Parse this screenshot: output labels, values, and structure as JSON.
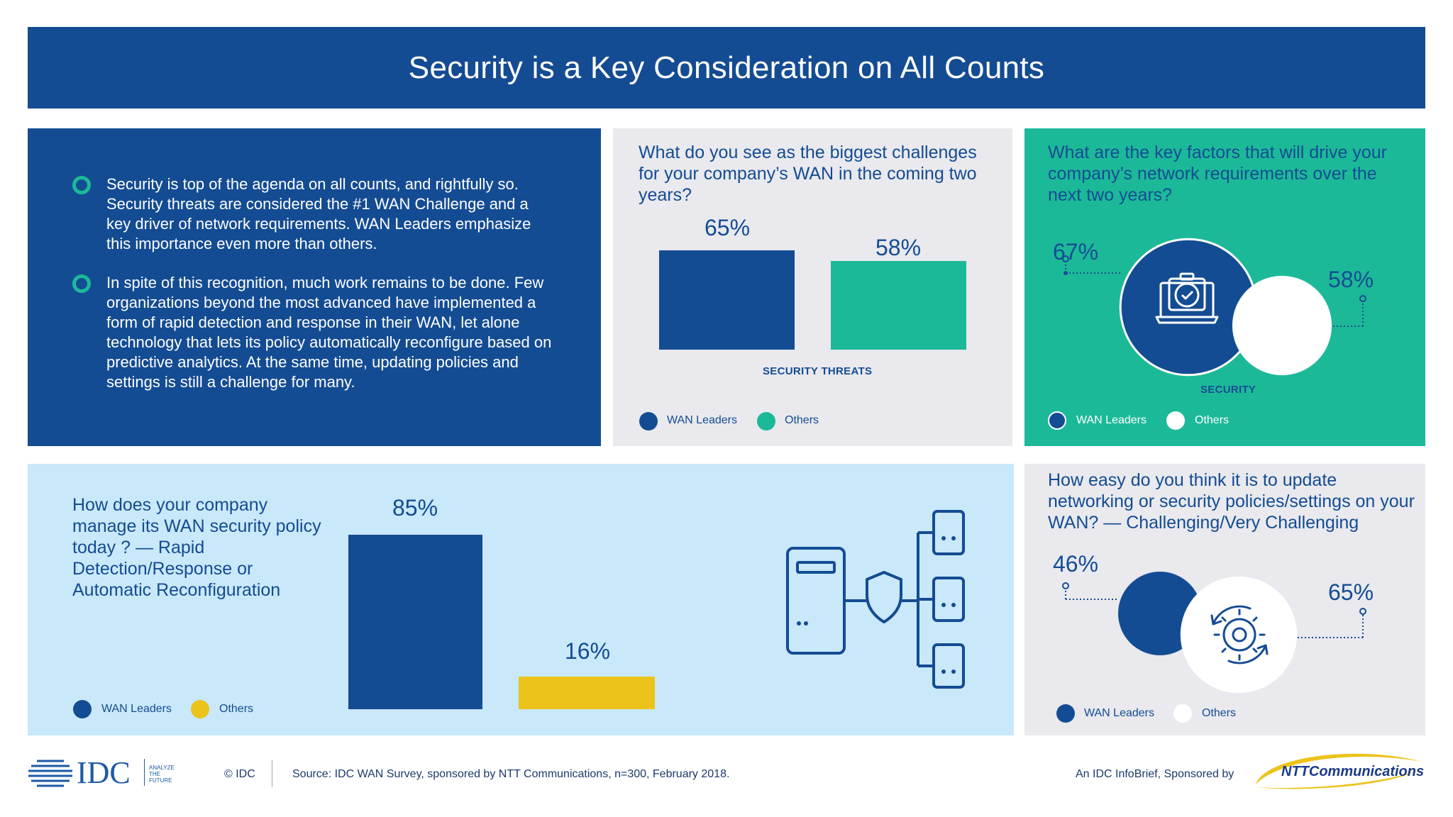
{
  "header": {
    "title": "Security is a Key Consideration on All Counts"
  },
  "intro": {
    "bullets": [
      "Security is top of the agenda on all counts, and rightfully so. Security threats are considered the #1 WAN Challenge and a key driver of network requirements. WAN Leaders emphasize this importance even more than others.",
      "In spite of this recognition, much work remains to be done. Few organizations beyond the most advanced have implemented a form of rapid detection and response in their WAN, let alone technology that lets its policy automatically reconfigure based on predictive analytics. At the same time, updating policies and settings is still a challenge for many."
    ]
  },
  "colors": {
    "navy": "#144c93",
    "teal": "#1cb999",
    "yellow": "#ecc31b",
    "light_blue": "#c9e8f9",
    "light_gray": "#e9e9ee"
  },
  "icons": {
    "manage_panel": "server-shield-network-icon",
    "factors_panel": "laptop-security-camera-icon",
    "easy_panel": "gear-refresh-icon"
  },
  "legend": {
    "wan_leaders": "WAN Leaders",
    "others": "Others"
  },
  "challenges": {
    "question": "What do you see as the biggest challenges for your company’s WAN in the coming two years?",
    "labels": [
      "65%",
      "58%"
    ]
  },
  "factors": {
    "question": "What are the key factors that will drive your company’s network requirements over the next two years?",
    "labels": [
      "67%",
      "58%"
    ]
  },
  "manage": {
    "question": "How does your company manage its WAN security policy today ? — Rapid Detection/Response or Automatic Reconfiguration",
    "labels": [
      "85%",
      "16%"
    ]
  },
  "easy": {
    "question": "How easy do you think it is to update networking or security policies/settings on your WAN? — Challenging/Very Challenging",
    "labels": [
      "46%",
      "65%"
    ]
  },
  "chart_data": [
    {
      "type": "bar",
      "title": "What do you see as the biggest challenges for your company’s WAN in the coming two years?",
      "categories": [
        "SECURITY THREATS"
      ],
      "series": [
        {
          "name": "WAN Leaders",
          "values": [
            65
          ],
          "color": "#144c93"
        },
        {
          "name": "Others",
          "values": [
            58
          ],
          "color": "#1cb999"
        }
      ],
      "ylim": [
        0,
        100
      ],
      "legend": "bottom-left"
    },
    {
      "type": "bubble",
      "title": "What are the key factors that will drive your company’s network requirements over the next two years?",
      "categories": [
        "SECURITY"
      ],
      "series": [
        {
          "name": "WAN Leaders",
          "values": [
            67
          ],
          "color": "#144c93"
        },
        {
          "name": "Others",
          "values": [
            58
          ],
          "color": "#ffffff"
        }
      ],
      "legend": "bottom-left"
    },
    {
      "type": "bar",
      "title": "How does your company manage its WAN security policy today ? — Rapid Detection/Response or Automatic Reconfiguration",
      "categories": [
        ""
      ],
      "series": [
        {
          "name": "WAN Leaders",
          "values": [
            85
          ],
          "color": "#144c93"
        },
        {
          "name": "Others",
          "values": [
            16
          ],
          "color": "#ecc31b"
        }
      ],
      "ylim": [
        0,
        100
      ],
      "legend": "bottom-left"
    },
    {
      "type": "bubble",
      "title": "How easy do you think it is to update networking or security policies/settings on your WAN? — Challenging/Very Challenging",
      "categories": [
        ""
      ],
      "series": [
        {
          "name": "WAN Leaders",
          "values": [
            46
          ],
          "color": "#144c93"
        },
        {
          "name": "Others",
          "values": [
            65
          ],
          "color": "#ffffff"
        }
      ],
      "legend": "bottom-left"
    }
  ],
  "footer": {
    "idc_logo": "IDC",
    "idc_tagline": [
      "ANALYZE",
      "THE",
      "FUTURE"
    ],
    "copyright": "© IDC",
    "source": "Source: IDC WAN Survey, sponsored by NTT Communications, n=300, February 2018.",
    "sponsor_text": "An IDC InfoBrief, Sponsored by",
    "ntt_logo": "NTTCommunications"
  }
}
